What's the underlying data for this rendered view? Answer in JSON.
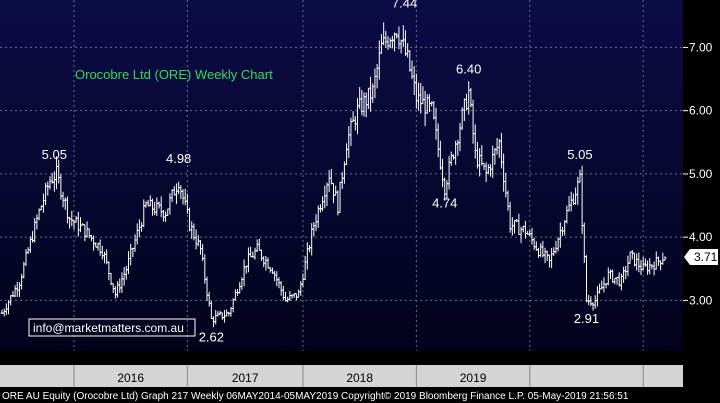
{
  "chart_data": {
    "type": "ohlc",
    "title": "Orocobre Ltd (ORE) Weekly Chart",
    "watermark": "info@marketmatters.com.au",
    "footer": "ORE AU Equity (Orocobre Ltd) Graph 217  Weekly 06MAY2014-05MAY2019 Copyright© 2019 Bloomberg Finance L.P.  05-May-2019 21:56:51",
    "ylim": [
      2.2,
      7.75
    ],
    "yticks": [
      3.0,
      4.0,
      5.0,
      6.0,
      7.0
    ],
    "ytick_labels": [
      "3.00",
      "4.00",
      "5.00",
      "6.00",
      "7.00"
    ],
    "x_labels": [
      "2016",
      "2017",
      "2018",
      "2019"
    ],
    "last_price": 3.71,
    "last_price_label": "3.71",
    "annotations": [
      {
        "text": "5.05",
        "week": 24,
        "value": 5.05
      },
      {
        "text": "4.98",
        "week": 81,
        "value": 4.98
      },
      {
        "text": "2.62",
        "week": 96,
        "value": 2.62
      },
      {
        "text": "7.44",
        "week": 180,
        "value": 7.44
      },
      {
        "text": "6.40",
        "week": 214,
        "value": 6.4
      },
      {
        "text": "4.74",
        "week": 203,
        "value": 4.74
      },
      {
        "text": "5.05",
        "week": 265,
        "value": 5.05
      },
      {
        "text": "2.91",
        "week": 268,
        "value": 2.91
      }
    ],
    "anchors": [
      [
        0,
        2.8
      ],
      [
        8,
        3.3
      ],
      [
        17,
        4.4
      ],
      [
        22,
        4.9
      ],
      [
        25,
        5.0
      ],
      [
        31,
        4.3
      ],
      [
        38,
        4.1
      ],
      [
        46,
        3.8
      ],
      [
        52,
        3.1
      ],
      [
        57,
        3.5
      ],
      [
        66,
        4.5
      ],
      [
        75,
        4.4
      ],
      [
        81,
        4.9
      ],
      [
        86,
        4.2
      ],
      [
        91,
        3.8
      ],
      [
        96,
        2.7
      ],
      [
        104,
        2.8
      ],
      [
        112,
        3.6
      ],
      [
        117,
        3.8
      ],
      [
        124,
        3.5
      ],
      [
        130,
        3.0
      ],
      [
        136,
        3.1
      ],
      [
        143,
        4.2
      ],
      [
        150,
        5.0
      ],
      [
        154,
        4.5
      ],
      [
        158,
        5.5
      ],
      [
        163,
        6.0
      ],
      [
        170,
        6.3
      ],
      [
        174,
        7.0
      ],
      [
        178,
        7.2
      ],
      [
        181,
        7.3
      ],
      [
        186,
        6.8
      ],
      [
        190,
        6.2
      ],
      [
        197,
        6.0
      ],
      [
        203,
        4.8
      ],
      [
        208,
        5.5
      ],
      [
        214,
        6.3
      ],
      [
        217,
        5.3
      ],
      [
        222,
        5.0
      ],
      [
        228,
        5.5
      ],
      [
        233,
        4.2
      ],
      [
        240,
        4.1
      ],
      [
        246,
        3.8
      ],
      [
        251,
        3.6
      ],
      [
        258,
        4.3
      ],
      [
        265,
        4.9
      ],
      [
        268,
        3.0
      ],
      [
        272,
        3.0
      ],
      [
        278,
        3.4
      ],
      [
        284,
        3.3
      ],
      [
        288,
        3.7
      ],
      [
        294,
        3.5
      ],
      [
        300,
        3.6
      ],
      [
        304,
        3.71
      ]
    ],
    "year_starts_week": [
      33,
      85,
      138,
      190,
      242,
      294
    ],
    "grid": true
  }
}
